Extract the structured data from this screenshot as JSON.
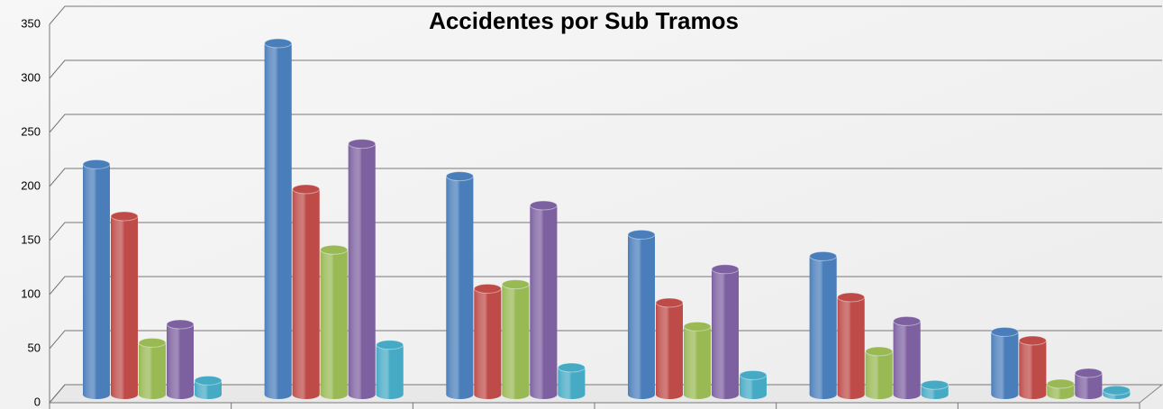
{
  "chart_data": {
    "type": "bar3d",
    "title": "Accidentes por Sub Tramos",
    "categories": [
      null,
      null,
      null,
      null,
      null,
      null
    ],
    "series": [
      {
        "color": "#4a7ebb",
        "values": [
          213,
          325,
          202,
          148,
          128,
          58
        ]
      },
      {
        "color": "#be4b48",
        "values": [
          165,
          190,
          98,
          85,
          90,
          50
        ]
      },
      {
        "color": "#98b954",
        "values": [
          48,
          134,
          102,
          63,
          40,
          10
        ]
      },
      {
        "color": "#7d60a0",
        "values": [
          65,
          232,
          175,
          116,
          68,
          20
        ]
      },
      {
        "color": "#46aac5",
        "values": [
          13,
          46,
          25,
          18,
          9,
          4
        ]
      }
    ],
    "ylim": [
      0,
      350
    ],
    "yticks": [
      0,
      50,
      100,
      150,
      200,
      250,
      300,
      350
    ],
    "grid": true
  }
}
